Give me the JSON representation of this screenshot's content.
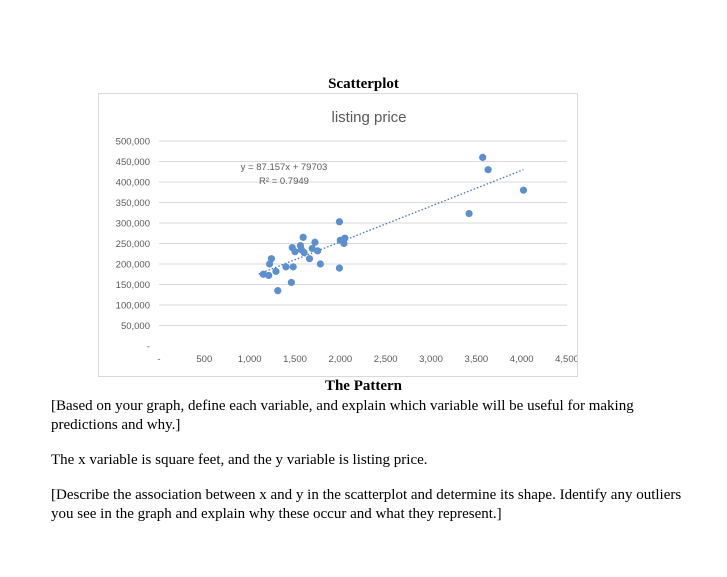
{
  "document": {
    "section_heading": "Scatterplot",
    "pattern_heading": "The Pattern",
    "paragraphs": [
      "[Based on your graph, define each variable, and explain which variable will be useful for making predictions and why.]",
      "The x variable is square feet, and the y variable is listing price.",
      "[Describe the association between x and y in the scatterplot and determine its shape. Identify any outliers you see in the graph and explain why these occur and what they represent.]"
    ]
  },
  "chart_data": {
    "type": "scatter",
    "title": "listing price",
    "xlabel": "",
    "ylabel": "",
    "xlim": [
      0,
      4500
    ],
    "ylim": [
      0,
      500000
    ],
    "x_ticks": [
      "-",
      "500",
      "1,000",
      "1,500",
      "2,000",
      "2,500",
      "3,000",
      "3,500",
      "4,000",
      "4,500"
    ],
    "y_ticks": [
      "-",
      "50,000",
      "100,000",
      "150,000",
      "200,000",
      "250,000",
      "300,000",
      "350,000",
      "400,000",
      "450,000",
      "500,000"
    ],
    "grid": "horizontal",
    "marker_color": "#5b8fd0",
    "trendline_color": "#4472c4",
    "trendline": {
      "equation": "y = 87.157x + 79703",
      "r_squared": "R² = 0.7949",
      "slope": 87.157,
      "intercept": 79703,
      "x_range": [
        1100,
        4020
      ]
    },
    "points": [
      {
        "x": 1150,
        "y": 175000
      },
      {
        "x": 1210,
        "y": 172000
      },
      {
        "x": 1220,
        "y": 200000
      },
      {
        "x": 1240,
        "y": 213000
      },
      {
        "x": 1290,
        "y": 182000
      },
      {
        "x": 1310,
        "y": 135000
      },
      {
        "x": 1400,
        "y": 193000
      },
      {
        "x": 1460,
        "y": 155000
      },
      {
        "x": 1470,
        "y": 240000
      },
      {
        "x": 1480,
        "y": 193000
      },
      {
        "x": 1500,
        "y": 230000
      },
      {
        "x": 1560,
        "y": 245000
      },
      {
        "x": 1570,
        "y": 235000
      },
      {
        "x": 1590,
        "y": 265000
      },
      {
        "x": 1600,
        "y": 228000
      },
      {
        "x": 1660,
        "y": 213000
      },
      {
        "x": 1690,
        "y": 238000
      },
      {
        "x": 1720,
        "y": 253000
      },
      {
        "x": 1750,
        "y": 232000
      },
      {
        "x": 1780,
        "y": 200000
      },
      {
        "x": 1990,
        "y": 190000
      },
      {
        "x": 1990,
        "y": 303000
      },
      {
        "x": 2000,
        "y": 258000
      },
      {
        "x": 2040,
        "y": 250000
      },
      {
        "x": 2050,
        "y": 263000
      },
      {
        "x": 3420,
        "y": 323000
      },
      {
        "x": 3570,
        "y": 460000
      },
      {
        "x": 3630,
        "y": 430000
      },
      {
        "x": 4020,
        "y": 380000
      }
    ]
  }
}
